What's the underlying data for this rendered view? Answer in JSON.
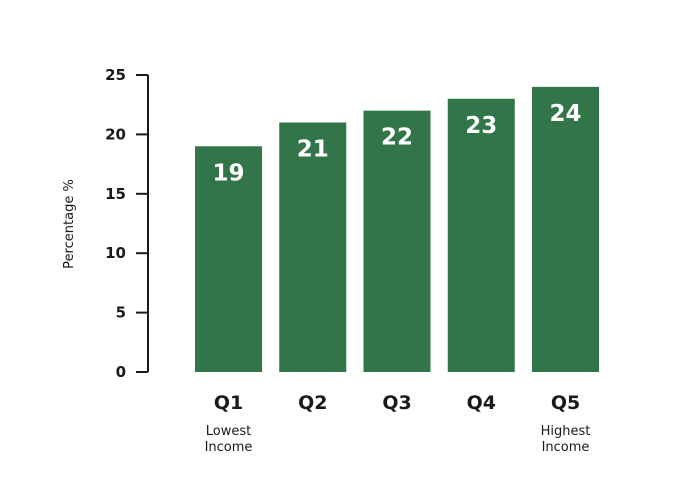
{
  "chart_data": {
    "type": "bar",
    "categories": [
      "Q1",
      "Q2",
      "Q3",
      "Q4",
      "Q5"
    ],
    "values": [
      19,
      21,
      22,
      23,
      24
    ],
    "category_sublabels": [
      "Lowest Income",
      "",
      "",
      "",
      "Highest Income"
    ],
    "title": "",
    "xlabel": "",
    "ylabel": "Percentage %",
    "ylim": [
      0,
      25
    ],
    "yticks": [
      0,
      5,
      10,
      15,
      20,
      25
    ],
    "grid": false,
    "bar_color": "#317548",
    "value_label_color": "#ffffff",
    "axis_color": "#1a1a1a"
  }
}
